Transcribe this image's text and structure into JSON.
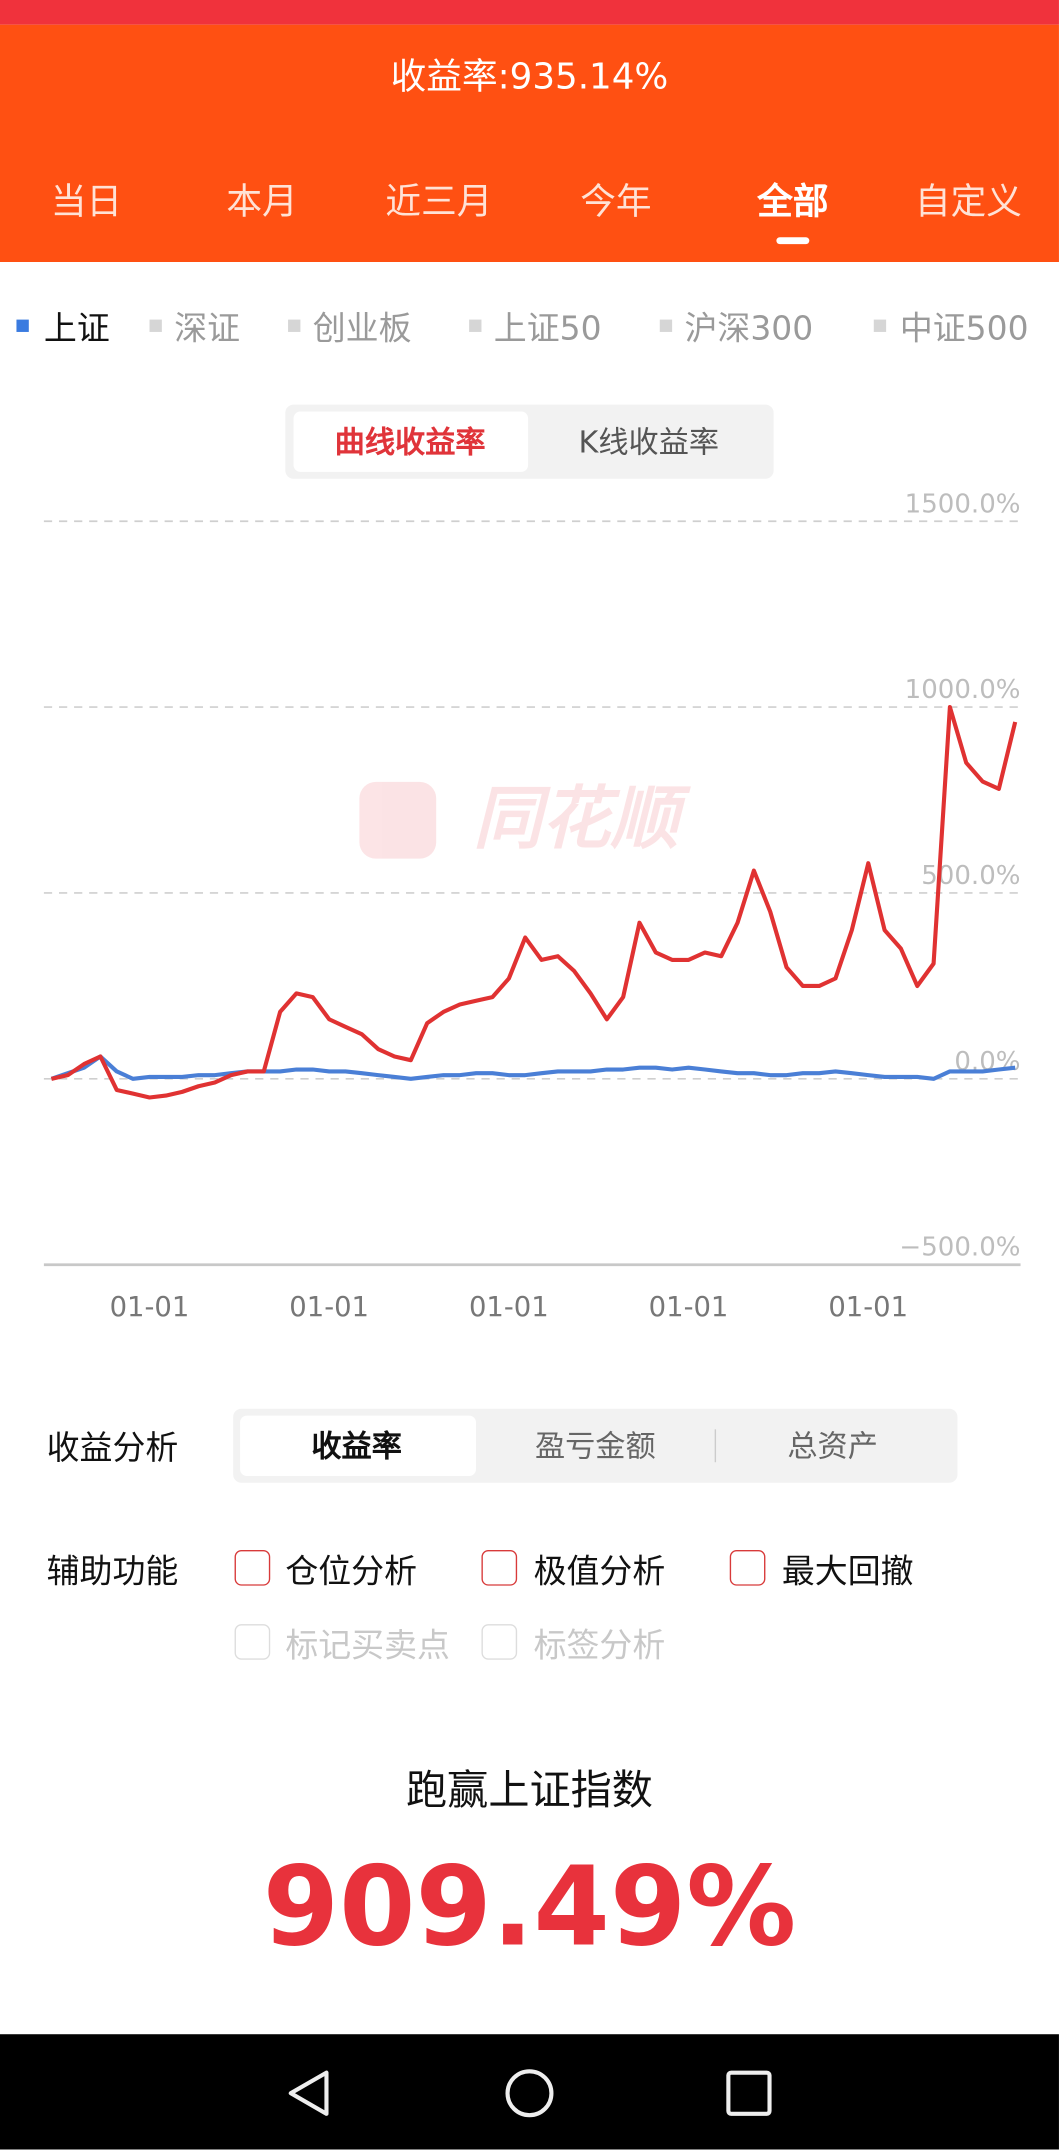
{
  "header": {
    "title": "收益率:935.14%",
    "periods": [
      "当日",
      "本月",
      "近三月",
      "今年",
      "全部",
      "自定义"
    ]
  },
  "index_tabs": [
    "上证",
    "深证",
    "创业板",
    "上证50",
    "沪深300",
    "中证500"
  ],
  "chart_toggle": [
    "曲线收益率",
    "K线收益率"
  ],
  "watermark": "同花顺",
  "chart_data": {
    "type": "line",
    "categories": [
      null,
      null,
      null,
      null,
      null,
      null,
      "01-01",
      null,
      null,
      null,
      null,
      null,
      null,
      null,
      null,
      null,
      null,
      "01-01",
      null,
      null,
      null,
      null,
      null,
      null,
      null,
      null,
      null,
      null,
      "01-01",
      null,
      null,
      null,
      null,
      null,
      null,
      null,
      null,
      null,
      null,
      "01-01",
      null,
      null,
      null,
      null,
      null,
      null,
      null,
      null,
      null,
      null,
      "01-01",
      null,
      null,
      null,
      null,
      null,
      null,
      null,
      null,
      null
    ],
    "series": [
      {
        "color": "#e03232",
        "values": [
          0,
          10,
          40,
          60,
          -30,
          -40,
          -50,
          -45,
          -35,
          -20,
          -10,
          10,
          20,
          20,
          180,
          230,
          220,
          160,
          140,
          120,
          80,
          60,
          50,
          150,
          180,
          200,
          210,
          220,
          270,
          380,
          320,
          330,
          290,
          230,
          160,
          220,
          420,
          340,
          320,
          320,
          340,
          330,
          420,
          560,
          450,
          300,
          250,
          250,
          270,
          400,
          580,
          400,
          350,
          250,
          310,
          1000,
          850,
          800,
          780,
          960
        ]
      },
      {
        "color": "#4a7fd6",
        "values": [
          0,
          15,
          30,
          60,
          20,
          0,
          5,
          5,
          5,
          10,
          10,
          15,
          20,
          20,
          20,
          25,
          25,
          20,
          20,
          15,
          10,
          5,
          0,
          5,
          10,
          10,
          15,
          15,
          10,
          10,
          15,
          20,
          20,
          20,
          25,
          25,
          30,
          30,
          25,
          30,
          25,
          20,
          15,
          15,
          10,
          10,
          15,
          15,
          20,
          15,
          10,
          5,
          5,
          5,
          0,
          20,
          20,
          20,
          25,
          30
        ]
      }
    ],
    "ylim": [
      -500,
      1500
    ],
    "yticks": [
      {
        "value": -500,
        "label": "−500.0%"
      },
      {
        "value": 0,
        "label": "0.0%"
      },
      {
        "value": 500,
        "label": "500.0%"
      },
      {
        "value": 1000,
        "label": "1000.0%"
      },
      {
        "value": 1500,
        "label": "1500.0%"
      }
    ],
    "grid": true
  },
  "analysis": {
    "label": "收益分析",
    "tabs": [
      "收益率",
      "盈亏金额",
      "总资产"
    ]
  },
  "aux": {
    "label": "辅助功能",
    "options": [
      "仓位分析",
      "极值分析",
      "最大回撤",
      "标记买卖点",
      "标签分析"
    ]
  },
  "beat": {
    "label": "跑赢上证指数",
    "value": "909.49%"
  }
}
